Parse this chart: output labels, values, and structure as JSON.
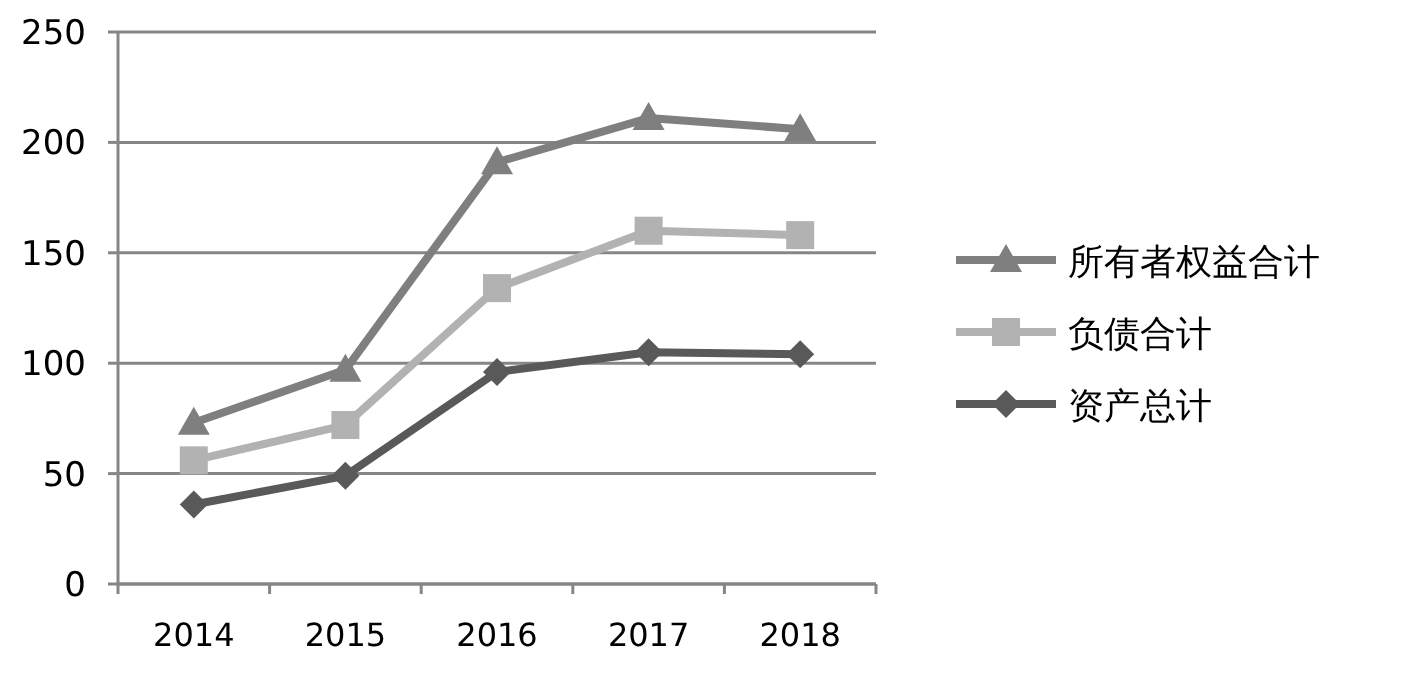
{
  "chart_data": {
    "type": "line",
    "categories": [
      "2014",
      "2015",
      "2016",
      "2017",
      "2018"
    ],
    "series": [
      {
        "name": "所有者权益合计",
        "color": "#7f7f7f",
        "marker": "triangle",
        "values": [
          73,
          97,
          191,
          211,
          206
        ]
      },
      {
        "name": "负债合计",
        "color": "#b2b2b2",
        "marker": "square",
        "values": [
          56,
          72,
          134,
          160,
          158
        ]
      },
      {
        "name": "资产总计",
        "color": "#595959",
        "marker": "diamond",
        "values": [
          36,
          49,
          96,
          105,
          104
        ]
      }
    ],
    "ylim": [
      0,
      250
    ],
    "yticks": [
      0,
      50,
      100,
      150,
      200,
      250
    ],
    "grid": "y",
    "legend": "right",
    "line_style": "solid"
  }
}
